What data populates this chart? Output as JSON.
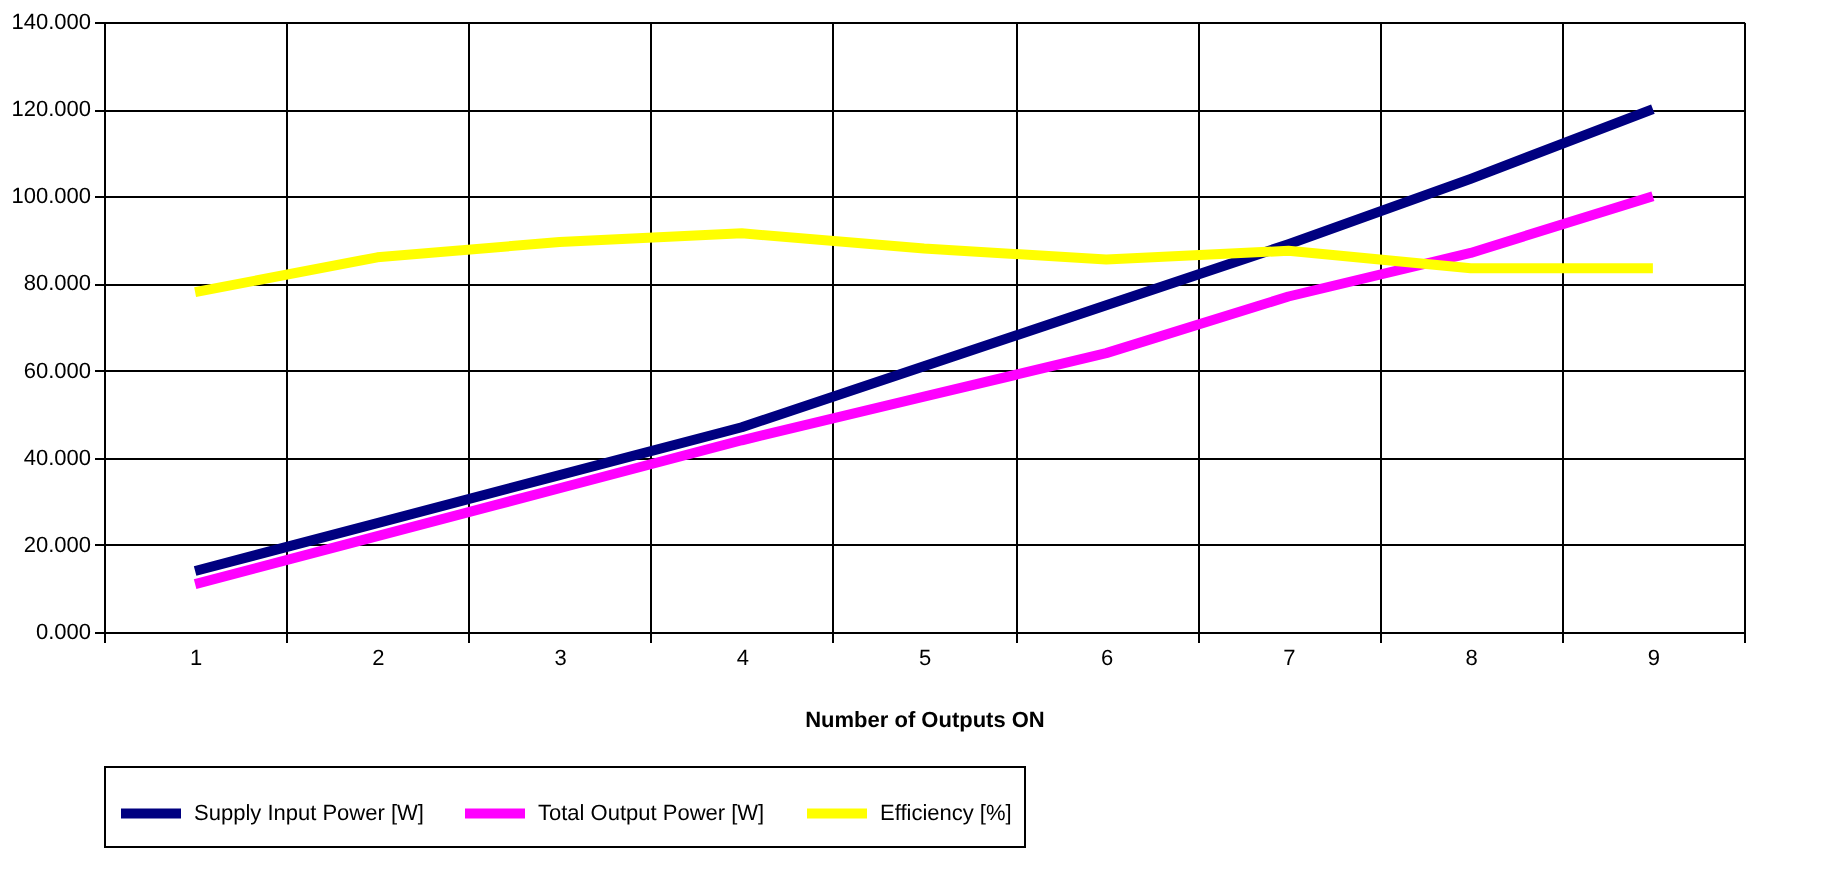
{
  "chart_data": {
    "type": "line",
    "xlabel": "Number of Outputs ON",
    "categories": [
      "1",
      "2",
      "3",
      "4",
      "5",
      "6",
      "7",
      "8",
      "9"
    ],
    "series": [
      {
        "name": "Supply Input Power [W]",
        "color": "#000080",
        "values": [
          14,
          25,
          36,
          47,
          61,
          75,
          89,
          104,
          120
        ]
      },
      {
        "name": "Total Output Power [W]",
        "color": "#ff00ff",
        "values": [
          11,
          22,
          33,
          44,
          54,
          64,
          77,
          87,
          100
        ]
      },
      {
        "name": "Efficiency [%]",
        "color": "#ffff00",
        "values": [
          78,
          86,
          89.5,
          91.5,
          88,
          85.5,
          87.5,
          83.5,
          83.5
        ]
      }
    ],
    "ylim": [
      0,
      140
    ],
    "yticks": [
      {
        "value": 0,
        "label": "0.000"
      },
      {
        "value": 20,
        "label": "20.000"
      },
      {
        "value": 40,
        "label": "40.000"
      },
      {
        "value": 60,
        "label": "60.000"
      },
      {
        "value": 80,
        "label": "80.000"
      },
      {
        "value": 100,
        "label": "100.000"
      },
      {
        "value": 120,
        "label": "120.000"
      },
      {
        "value": 140,
        "label": "140.000"
      }
    ],
    "grid": true,
    "legend": "bottom",
    "marker": "none",
    "line_style": "solid"
  }
}
